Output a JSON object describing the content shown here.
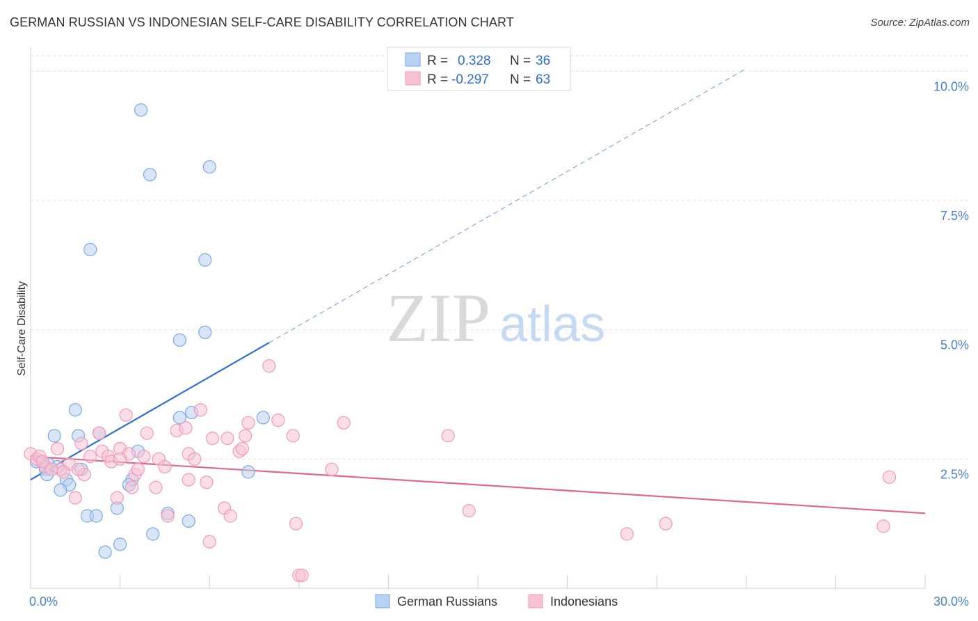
{
  "title": "GERMAN RUSSIAN VS INDONESIAN SELF-CARE DISABILITY CORRELATION CHART",
  "source": "Source: ZipAtlas.com",
  "watermark": {
    "zip": "ZIP",
    "atlas": "atlas"
  },
  "chart_data": {
    "type": "scatter",
    "ylabel": "Self-Care Disability",
    "xlabel": "",
    "xlim": [
      0,
      30
    ],
    "ylim": [
      0,
      10.3
    ],
    "x_tick_labels": [
      {
        "value": 0,
        "label": "0.0%"
      },
      {
        "value": 30,
        "label": "30.0%"
      }
    ],
    "x_minor_ticks": [
      0,
      3,
      6,
      9,
      12,
      15,
      18,
      21,
      24,
      27,
      30
    ],
    "y_ticks": [
      {
        "value": 2.5,
        "label": "2.5%"
      },
      {
        "value": 5.0,
        "label": "5.0%"
      },
      {
        "value": 7.5,
        "label": "7.5%"
      },
      {
        "value": 10.0,
        "label": "10.0%"
      }
    ],
    "grid": true,
    "legend": {
      "entries": [
        {
          "r_label": "R =",
          "r_value": "0.328",
          "n_label": "N =",
          "n_value": "36"
        },
        {
          "r_label": "R =",
          "r_value": "-0.297",
          "n_label": "N =",
          "n_value": "63"
        }
      ]
    },
    "series": [
      {
        "name": "German Russians",
        "color": "#7aa7e6",
        "fill": "#b9d1f3",
        "line_color": "#2f6fd0",
        "trend": {
          "x0": 0,
          "y0": 2.1,
          "x1": 8.0,
          "y1": 4.75,
          "dashed_to_x": 24.0,
          "dashed_to_y": 10.05
        },
        "points": [
          [
            3.7,
            9.25
          ],
          [
            6.0,
            8.15
          ],
          [
            4.0,
            8.0
          ],
          [
            2.0,
            6.55
          ],
          [
            5.85,
            6.35
          ],
          [
            5.85,
            4.95
          ],
          [
            5.0,
            4.8
          ],
          [
            1.5,
            3.45
          ],
          [
            5.4,
            3.4
          ],
          [
            7.8,
            3.3
          ],
          [
            5.0,
            3.3
          ],
          [
            2.3,
            3.0
          ],
          [
            0.8,
            2.95
          ],
          [
            1.6,
            2.95
          ],
          [
            3.6,
            2.65
          ],
          [
            0.2,
            2.45
          ],
          [
            0.4,
            2.45
          ],
          [
            0.6,
            2.4
          ],
          [
            0.9,
            2.35
          ],
          [
            0.5,
            2.3
          ],
          [
            1.7,
            2.3
          ],
          [
            7.3,
            2.25
          ],
          [
            0.55,
            2.2
          ],
          [
            1.2,
            2.1
          ],
          [
            3.4,
            2.1
          ],
          [
            3.3,
            2.0
          ],
          [
            1.3,
            2.0
          ],
          [
            1.0,
            1.9
          ],
          [
            2.9,
            1.55
          ],
          [
            1.9,
            1.4
          ],
          [
            2.2,
            1.4
          ],
          [
            4.6,
            1.45
          ],
          [
            5.3,
            1.3
          ],
          [
            4.1,
            1.05
          ],
          [
            3.0,
            0.85
          ],
          [
            2.5,
            0.7
          ]
        ]
      },
      {
        "name": "Indonesians",
        "color": "#f09ab4",
        "fill": "#f7c3d3",
        "line_color": "#e0658f",
        "trend": {
          "x0": 0,
          "y0": 2.55,
          "x1": 30,
          "y1": 1.45
        },
        "points": [
          [
            8.0,
            4.3
          ],
          [
            3.2,
            3.35
          ],
          [
            5.7,
            3.45
          ],
          [
            4.9,
            3.05
          ],
          [
            5.2,
            3.1
          ],
          [
            2.3,
            3.0
          ],
          [
            3.9,
            3.0
          ],
          [
            7.3,
            3.2
          ],
          [
            8.3,
            3.25
          ],
          [
            10.5,
            3.2
          ],
          [
            14.0,
            2.95
          ],
          [
            7.2,
            2.95
          ],
          [
            6.6,
            2.9
          ],
          [
            6.1,
            2.9
          ],
          [
            8.8,
            2.95
          ],
          [
            1.7,
            2.8
          ],
          [
            0.0,
            2.6
          ],
          [
            0.2,
            2.5
          ],
          [
            0.3,
            2.55
          ],
          [
            0.9,
            2.7
          ],
          [
            2.0,
            2.55
          ],
          [
            2.4,
            2.65
          ],
          [
            2.6,
            2.55
          ],
          [
            3.0,
            2.7
          ],
          [
            3.3,
            2.6
          ],
          [
            3.8,
            2.55
          ],
          [
            4.3,
            2.5
          ],
          [
            5.3,
            2.6
          ],
          [
            5.5,
            2.5
          ],
          [
            7.0,
            2.65
          ],
          [
            7.1,
            2.7
          ],
          [
            0.5,
            2.35
          ],
          [
            1.0,
            2.3
          ],
          [
            1.3,
            2.4
          ],
          [
            1.8,
            2.2
          ],
          [
            2.7,
            2.45
          ],
          [
            3.5,
            2.2
          ],
          [
            3.6,
            2.3
          ],
          [
            4.5,
            2.35
          ],
          [
            10.1,
            2.3
          ],
          [
            0.7,
            2.3
          ],
          [
            1.1,
            2.25
          ],
          [
            2.9,
            1.75
          ],
          [
            1.5,
            1.75
          ],
          [
            4.2,
            1.95
          ],
          [
            5.3,
            2.1
          ],
          [
            5.9,
            2.05
          ],
          [
            3.4,
            1.95
          ],
          [
            6.5,
            1.55
          ],
          [
            6.7,
            1.4
          ],
          [
            14.7,
            1.5
          ],
          [
            4.6,
            1.4
          ],
          [
            8.9,
            1.25
          ],
          [
            21.3,
            1.25
          ],
          [
            28.6,
            1.2
          ],
          [
            20.0,
            1.05
          ],
          [
            6.0,
            0.9
          ],
          [
            28.8,
            2.15
          ],
          [
            9.0,
            0.25
          ],
          [
            9.1,
            0.25
          ],
          [
            0.4,
            2.45
          ],
          [
            1.6,
            2.3
          ],
          [
            3.0,
            2.5
          ]
        ]
      }
    ]
  }
}
